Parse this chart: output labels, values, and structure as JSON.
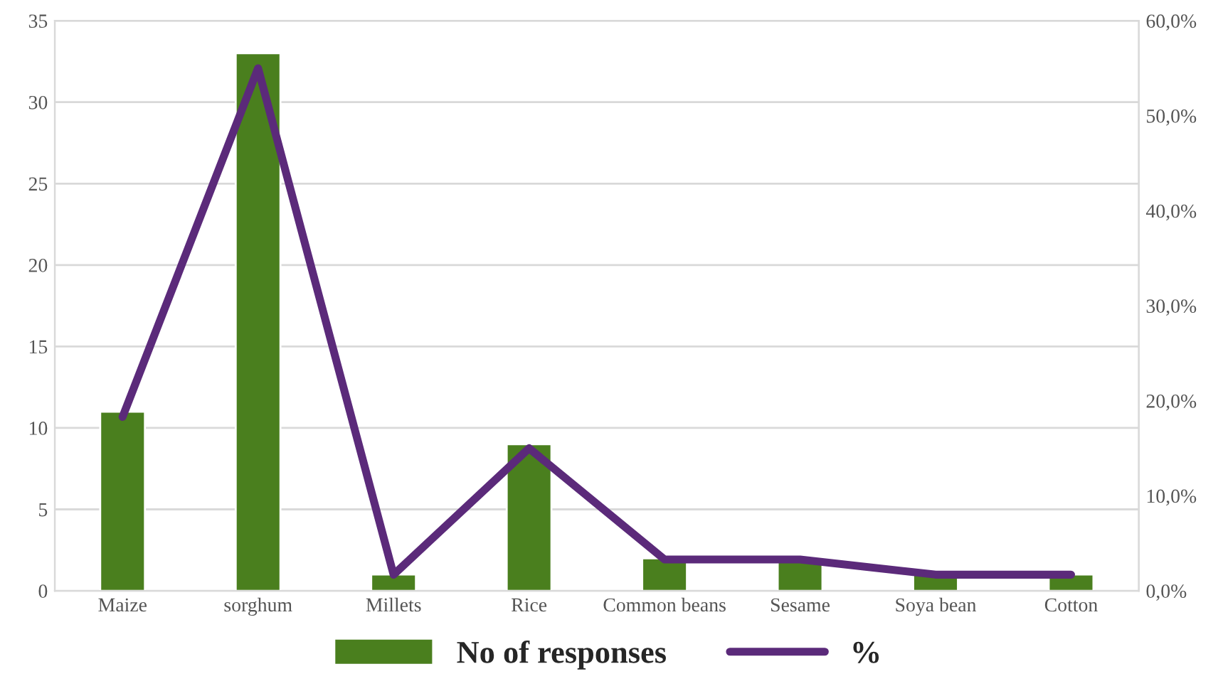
{
  "chart_data": {
    "type": "bar",
    "categories": [
      "Maize",
      "sorghum",
      "Millets",
      "Rice",
      "Common beans",
      "Sesame",
      "Soya bean",
      "Cotton"
    ],
    "series": [
      {
        "name": "No of responses",
        "color": "#4a7f1e",
        "values": [
          11,
          33,
          1,
          9,
          2,
          2,
          1,
          1
        ]
      },
      {
        "name": "%",
        "type": "line",
        "axis": "y2",
        "color": "#5b2a7a",
        "values": [
          18.3,
          55.0,
          1.7,
          15.0,
          3.3,
          3.3,
          1.7,
          1.7
        ]
      }
    ],
    "ylim": [
      0,
      35
    ],
    "yticks": [
      0,
      5,
      10,
      15,
      20,
      25,
      30,
      35
    ],
    "y2lim": [
      0,
      60
    ],
    "y2ticks": [
      {
        "value": 0,
        "label": "0,0%"
      },
      {
        "value": 10,
        "label": "10,0%"
      },
      {
        "value": 20,
        "label": "20,0%"
      },
      {
        "value": 30,
        "label": "30,0%"
      },
      {
        "value": 40,
        "label": "40,0%"
      },
      {
        "value": 50,
        "label": "50,0%"
      },
      {
        "value": 60,
        "label": "60,0%"
      }
    ],
    "grid": "y",
    "legend": "bottom",
    "marker": "none",
    "line_style": "solid"
  }
}
